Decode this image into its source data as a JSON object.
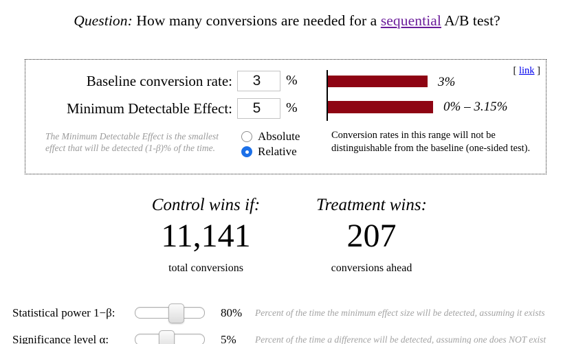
{
  "title": {
    "question_label": "Question:",
    "before_link": " How many conversions are needed for a ",
    "link_text": "sequential",
    "after_link": " A/B test?"
  },
  "panel": {
    "link_prefix": "[ ",
    "link_text": "link",
    "link_suffix": " ]",
    "baseline_label": "Baseline conversion rate:",
    "baseline_value": "3",
    "mde_label": "Minimum Detectable Effect:",
    "mde_value": "5",
    "percent_sign": "%",
    "mde_note": "The Minimum Detectable Effect is the smallest effect that will be detected (1-β)% of the time.",
    "radio_options": [
      {
        "label": "Absolute",
        "checked": false
      },
      {
        "label": "Relative",
        "checked": true
      }
    ],
    "chart_caption": "Conversion rates in this range will not be distinguishable from the baseline (one-sided test)."
  },
  "chart_data": {
    "type": "bar",
    "orientation": "horizontal",
    "bars": [
      {
        "label": "3%",
        "value": 3
      },
      {
        "label": "0% – 3.15%",
        "value": 3.15
      }
    ],
    "xlim": [
      0,
      3.3
    ],
    "bar_color": "#8e0413"
  },
  "results": {
    "control": {
      "heading": "Control wins if:",
      "value": "11,141",
      "caption": "total conversions"
    },
    "treatment": {
      "heading": "Treatment wins:",
      "value": "207",
      "caption": "conversions ahead"
    }
  },
  "sliders": {
    "power": {
      "label": "Statistical power 1−β:",
      "value": "80%",
      "thumb_percent": 59,
      "note": "Percent of the time the minimum effect size will be detected, assuming it exists"
    },
    "alpha": {
      "label": "Significance level α:",
      "value": "5%",
      "thumb_percent": 45,
      "note": "Percent of the time a difference will be detected, assuming one does NOT exist"
    }
  },
  "colors": {
    "bar": "#8e0413",
    "link_blue": "#0000ee",
    "visited_purple": "#6a1b9a",
    "radio_blue": "#1c70e8",
    "muted_text": "#9a9a9a"
  }
}
